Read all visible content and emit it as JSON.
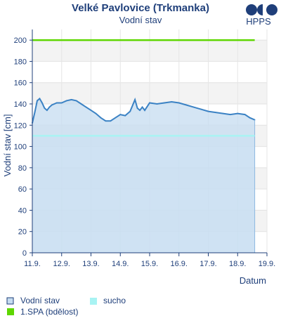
{
  "chart_data": {
    "type": "area",
    "title": "Velké Pavlovice (Trkmanka)",
    "subtitle": "Vodní stav",
    "ylabel": "Vodní stav [cm]",
    "xlabel": "Datum",
    "ylim": [
      0,
      210
    ],
    "yticks": [
      0,
      20,
      40,
      60,
      80,
      100,
      120,
      140,
      160,
      180,
      200
    ],
    "xlim": [
      "11.9.",
      "19.9."
    ],
    "xticks": [
      "11.9.",
      "12.9.",
      "13.9.",
      "14.9.",
      "15.9.",
      "16.9.",
      "17.9.",
      "18.9.",
      "19.9."
    ],
    "grid": true,
    "bands": [
      {
        "from": 0,
        "to": 110,
        "color": "#d9e9f7"
      },
      {
        "from": 110,
        "to": 120,
        "color": "#eeeeee"
      }
    ],
    "thresholds": [
      {
        "name": "1.SPA (bdělost)",
        "value": 200,
        "color": "#5ed600"
      },
      {
        "name": "sucho",
        "value": 110,
        "color": "#a8f3f3"
      }
    ],
    "series": [
      {
        "name": "Vodní stav",
        "color": "#3b82c4",
        "fill": "#c6dcf0",
        "x": [
          "11.9. 00:00",
          "11.9. 02:00",
          "11.9. 04:00",
          "11.9. 06:00",
          "11.9. 08:00",
          "11.9. 10:00",
          "11.9. 12:00",
          "11.9. 14:00",
          "11.9. 16:00",
          "11.9. 18:00",
          "11.9. 20:00",
          "11.9. 22:00",
          "12.9. 00:00",
          "12.9. 04:00",
          "12.9. 08:00",
          "12.9. 12:00",
          "12.9. 16:00",
          "12.9. 20:00",
          "13.9. 00:00",
          "13.9. 04:00",
          "13.9. 08:00",
          "13.9. 12:00",
          "13.9. 16:00",
          "13.9. 20:00",
          "14.9. 00:00",
          "14.9. 04:00",
          "14.9. 08:00",
          "14.9. 12:00",
          "14.9. 14:00",
          "14.9. 16:00",
          "14.9. 18:00",
          "14.9. 20:00",
          "15.9. 00:00",
          "15.9. 06:00",
          "15.9. 12:00",
          "15.9. 18:00",
          "16.9. 00:00",
          "16.9. 06:00",
          "16.9. 12:00",
          "16.9. 18:00",
          "17.9. 00:00",
          "17.9. 06:00",
          "17.9. 12:00",
          "17.9. 18:00",
          "18.9. 00:00",
          "18.9. 06:00",
          "18.9. 10:00",
          "18.9. 14:00"
        ],
        "values": [
          122,
          132,
          143,
          145,
          141,
          136,
          134,
          137,
          139,
          140,
          141,
          141,
          141,
          143,
          144,
          143,
          140,
          137,
          134,
          131,
          127,
          124,
          124,
          127,
          130,
          129,
          133,
          144,
          136,
          134,
          137,
          134,
          141,
          140,
          141,
          142,
          141,
          139,
          137,
          135,
          133,
          132,
          131,
          130,
          131,
          130,
          127,
          125
        ]
      }
    ],
    "legend": [
      {
        "label": "Vodní stav",
        "type": "box",
        "color": "#c6dcf0",
        "border": "#1f3f7a"
      },
      {
        "label": "sucho",
        "type": "fill",
        "color": "#a8f3f3"
      },
      {
        "label": "1.SPA (bdělost)",
        "type": "fill",
        "color": "#5ed600"
      }
    ],
    "legend_position": "bottom-left"
  },
  "logo": {
    "text": "HPPS",
    "color": "#1f3f7a"
  }
}
